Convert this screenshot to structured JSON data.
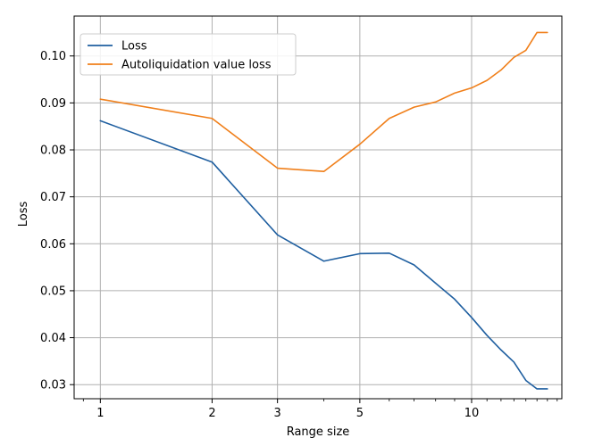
{
  "chart_data": {
    "type": "line",
    "xlabel": "Range size",
    "ylabel": "Loss",
    "x_scale": "log",
    "xlim": [
      0.85,
      17.5
    ],
    "ylim": [
      0.027,
      0.1085
    ],
    "grid": true,
    "legend_position": "top-left",
    "x_ticks": [
      1,
      2,
      3,
      5,
      10
    ],
    "x_tick_labels": [
      "1",
      "2",
      "3",
      "5",
      "10"
    ],
    "y_ticks": [
      0.03,
      0.04,
      0.05,
      0.06,
      0.07,
      0.08,
      0.09,
      0.1
    ],
    "y_tick_labels": [
      "0.03",
      "0.04",
      "0.05",
      "0.06",
      "0.07",
      "0.08",
      "0.09",
      "0.10"
    ],
    "series": [
      {
        "name": "Loss",
        "color": "#1f5fa0",
        "x": [
          1,
          2,
          3,
          4,
          5,
          6,
          7,
          8,
          9,
          10,
          11,
          12,
          13,
          14,
          15,
          16
        ],
        "values": [
          0.0862,
          0.0774,
          0.0619,
          0.0563,
          0.0579,
          0.058,
          0.0555,
          0.0516,
          0.0482,
          0.0443,
          0.0405,
          0.0374,
          0.0348,
          0.0309,
          0.0291,
          0.0291
        ]
      },
      {
        "name": "Autoliquidation value loss",
        "color": "#f07f1a",
        "x": [
          1,
          2,
          3,
          4,
          5,
          6,
          7,
          8,
          9,
          10,
          11,
          12,
          13,
          14,
          15,
          16
        ],
        "values": [
          0.0908,
          0.0867,
          0.0761,
          0.0754,
          0.0812,
          0.0867,
          0.0891,
          0.0902,
          0.0921,
          0.0932,
          0.0948,
          0.097,
          0.0997,
          0.1012,
          0.105,
          0.105
        ]
      }
    ]
  }
}
